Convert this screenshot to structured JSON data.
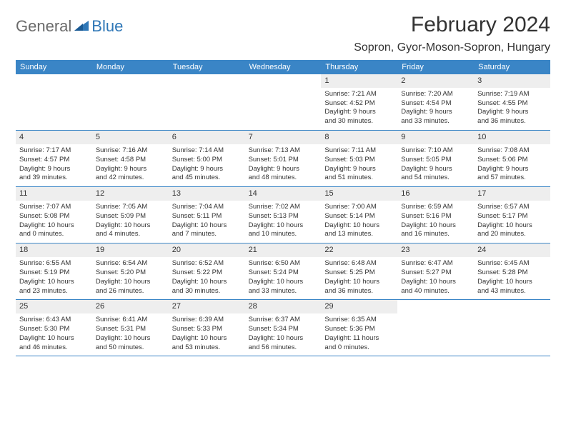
{
  "logo": {
    "general": "General",
    "blue": "Blue"
  },
  "title": "February 2024",
  "location": "Sopron, Gyor-Moson-Sopron, Hungary",
  "colors": {
    "header_bg": "#3a85c6",
    "header_text": "#ffffff",
    "daynum_bg": "#eeeeee",
    "border": "#3a85c6",
    "logo_gray": "#6b6b6b",
    "logo_blue": "#2f77b7"
  },
  "weekdays": [
    "Sunday",
    "Monday",
    "Tuesday",
    "Wednesday",
    "Thursday",
    "Friday",
    "Saturday"
  ],
  "weeks": [
    [
      {
        "empty": true
      },
      {
        "empty": true
      },
      {
        "empty": true
      },
      {
        "empty": true
      },
      {
        "day": "1",
        "sunrise": "Sunrise: 7:21 AM",
        "sunset": "Sunset: 4:52 PM",
        "daylight1": "Daylight: 9 hours",
        "daylight2": "and 30 minutes."
      },
      {
        "day": "2",
        "sunrise": "Sunrise: 7:20 AM",
        "sunset": "Sunset: 4:54 PM",
        "daylight1": "Daylight: 9 hours",
        "daylight2": "and 33 minutes."
      },
      {
        "day": "3",
        "sunrise": "Sunrise: 7:19 AM",
        "sunset": "Sunset: 4:55 PM",
        "daylight1": "Daylight: 9 hours",
        "daylight2": "and 36 minutes."
      }
    ],
    [
      {
        "day": "4",
        "sunrise": "Sunrise: 7:17 AM",
        "sunset": "Sunset: 4:57 PM",
        "daylight1": "Daylight: 9 hours",
        "daylight2": "and 39 minutes."
      },
      {
        "day": "5",
        "sunrise": "Sunrise: 7:16 AM",
        "sunset": "Sunset: 4:58 PM",
        "daylight1": "Daylight: 9 hours",
        "daylight2": "and 42 minutes."
      },
      {
        "day": "6",
        "sunrise": "Sunrise: 7:14 AM",
        "sunset": "Sunset: 5:00 PM",
        "daylight1": "Daylight: 9 hours",
        "daylight2": "and 45 minutes."
      },
      {
        "day": "7",
        "sunrise": "Sunrise: 7:13 AM",
        "sunset": "Sunset: 5:01 PM",
        "daylight1": "Daylight: 9 hours",
        "daylight2": "and 48 minutes."
      },
      {
        "day": "8",
        "sunrise": "Sunrise: 7:11 AM",
        "sunset": "Sunset: 5:03 PM",
        "daylight1": "Daylight: 9 hours",
        "daylight2": "and 51 minutes."
      },
      {
        "day": "9",
        "sunrise": "Sunrise: 7:10 AM",
        "sunset": "Sunset: 5:05 PM",
        "daylight1": "Daylight: 9 hours",
        "daylight2": "and 54 minutes."
      },
      {
        "day": "10",
        "sunrise": "Sunrise: 7:08 AM",
        "sunset": "Sunset: 5:06 PM",
        "daylight1": "Daylight: 9 hours",
        "daylight2": "and 57 minutes."
      }
    ],
    [
      {
        "day": "11",
        "sunrise": "Sunrise: 7:07 AM",
        "sunset": "Sunset: 5:08 PM",
        "daylight1": "Daylight: 10 hours",
        "daylight2": "and 0 minutes."
      },
      {
        "day": "12",
        "sunrise": "Sunrise: 7:05 AM",
        "sunset": "Sunset: 5:09 PM",
        "daylight1": "Daylight: 10 hours",
        "daylight2": "and 4 minutes."
      },
      {
        "day": "13",
        "sunrise": "Sunrise: 7:04 AM",
        "sunset": "Sunset: 5:11 PM",
        "daylight1": "Daylight: 10 hours",
        "daylight2": "and 7 minutes."
      },
      {
        "day": "14",
        "sunrise": "Sunrise: 7:02 AM",
        "sunset": "Sunset: 5:13 PM",
        "daylight1": "Daylight: 10 hours",
        "daylight2": "and 10 minutes."
      },
      {
        "day": "15",
        "sunrise": "Sunrise: 7:00 AM",
        "sunset": "Sunset: 5:14 PM",
        "daylight1": "Daylight: 10 hours",
        "daylight2": "and 13 minutes."
      },
      {
        "day": "16",
        "sunrise": "Sunrise: 6:59 AM",
        "sunset": "Sunset: 5:16 PM",
        "daylight1": "Daylight: 10 hours",
        "daylight2": "and 16 minutes."
      },
      {
        "day": "17",
        "sunrise": "Sunrise: 6:57 AM",
        "sunset": "Sunset: 5:17 PM",
        "daylight1": "Daylight: 10 hours",
        "daylight2": "and 20 minutes."
      }
    ],
    [
      {
        "day": "18",
        "sunrise": "Sunrise: 6:55 AM",
        "sunset": "Sunset: 5:19 PM",
        "daylight1": "Daylight: 10 hours",
        "daylight2": "and 23 minutes."
      },
      {
        "day": "19",
        "sunrise": "Sunrise: 6:54 AM",
        "sunset": "Sunset: 5:20 PM",
        "daylight1": "Daylight: 10 hours",
        "daylight2": "and 26 minutes."
      },
      {
        "day": "20",
        "sunrise": "Sunrise: 6:52 AM",
        "sunset": "Sunset: 5:22 PM",
        "daylight1": "Daylight: 10 hours",
        "daylight2": "and 30 minutes."
      },
      {
        "day": "21",
        "sunrise": "Sunrise: 6:50 AM",
        "sunset": "Sunset: 5:24 PM",
        "daylight1": "Daylight: 10 hours",
        "daylight2": "and 33 minutes."
      },
      {
        "day": "22",
        "sunrise": "Sunrise: 6:48 AM",
        "sunset": "Sunset: 5:25 PM",
        "daylight1": "Daylight: 10 hours",
        "daylight2": "and 36 minutes."
      },
      {
        "day": "23",
        "sunrise": "Sunrise: 6:47 AM",
        "sunset": "Sunset: 5:27 PM",
        "daylight1": "Daylight: 10 hours",
        "daylight2": "and 40 minutes."
      },
      {
        "day": "24",
        "sunrise": "Sunrise: 6:45 AM",
        "sunset": "Sunset: 5:28 PM",
        "daylight1": "Daylight: 10 hours",
        "daylight2": "and 43 minutes."
      }
    ],
    [
      {
        "day": "25",
        "sunrise": "Sunrise: 6:43 AM",
        "sunset": "Sunset: 5:30 PM",
        "daylight1": "Daylight: 10 hours",
        "daylight2": "and 46 minutes."
      },
      {
        "day": "26",
        "sunrise": "Sunrise: 6:41 AM",
        "sunset": "Sunset: 5:31 PM",
        "daylight1": "Daylight: 10 hours",
        "daylight2": "and 50 minutes."
      },
      {
        "day": "27",
        "sunrise": "Sunrise: 6:39 AM",
        "sunset": "Sunset: 5:33 PM",
        "daylight1": "Daylight: 10 hours",
        "daylight2": "and 53 minutes."
      },
      {
        "day": "28",
        "sunrise": "Sunrise: 6:37 AM",
        "sunset": "Sunset: 5:34 PM",
        "daylight1": "Daylight: 10 hours",
        "daylight2": "and 56 minutes."
      },
      {
        "day": "29",
        "sunrise": "Sunrise: 6:35 AM",
        "sunset": "Sunset: 5:36 PM",
        "daylight1": "Daylight: 11 hours",
        "daylight2": "and 0 minutes."
      },
      {
        "empty": true
      },
      {
        "empty": true
      }
    ]
  ]
}
